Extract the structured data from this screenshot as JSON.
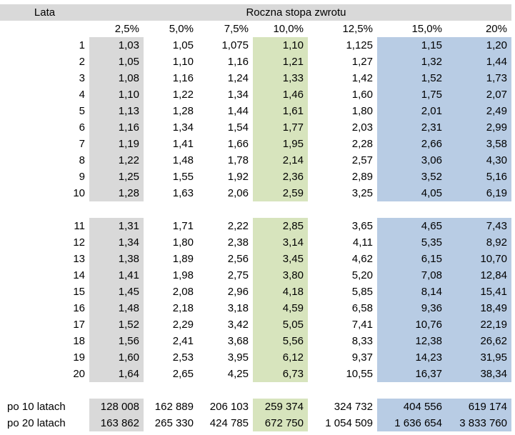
{
  "header": {
    "years_label": "Lata",
    "rate_title": "Roczna stopa zwrotu"
  },
  "rates": [
    "2,5%",
    "5,0%",
    "7,5%",
    "10,0%",
    "12,5%",
    "15,0%",
    "20%"
  ],
  "block1": [
    {
      "year": "1",
      "values": [
        "1,03",
        "1,05",
        "1,075",
        "1,10",
        "1,125",
        "1,15",
        "1,20"
      ]
    },
    {
      "year": "2",
      "values": [
        "1,05",
        "1,10",
        "1,16",
        "1,21",
        "1,27",
        "1,32",
        "1,44"
      ]
    },
    {
      "year": "3",
      "values": [
        "1,08",
        "1,16",
        "1,24",
        "1,33",
        "1,42",
        "1,52",
        "1,73"
      ]
    },
    {
      "year": "4",
      "values": [
        "1,10",
        "1,22",
        "1,34",
        "1,46",
        "1,60",
        "1,75",
        "2,07"
      ]
    },
    {
      "year": "5",
      "values": [
        "1,13",
        "1,28",
        "1,44",
        "1,61",
        "1,80",
        "2,01",
        "2,49"
      ]
    },
    {
      "year": "6",
      "values": [
        "1,16",
        "1,34",
        "1,54",
        "1,77",
        "2,03",
        "2,31",
        "2,99"
      ]
    },
    {
      "year": "7",
      "values": [
        "1,19",
        "1,41",
        "1,66",
        "1,95",
        "2,28",
        "2,66",
        "3,58"
      ]
    },
    {
      "year": "8",
      "values": [
        "1,22",
        "1,48",
        "1,78",
        "2,14",
        "2,57",
        "3,06",
        "4,30"
      ]
    },
    {
      "year": "9",
      "values": [
        "1,25",
        "1,55",
        "1,92",
        "2,36",
        "2,89",
        "3,52",
        "5,16"
      ]
    },
    {
      "year": "10",
      "values": [
        "1,28",
        "1,63",
        "2,06",
        "2,59",
        "3,25",
        "4,05",
        "6,19"
      ]
    }
  ],
  "block2": [
    {
      "year": "11",
      "values": [
        "1,31",
        "1,71",
        "2,22",
        "2,85",
        "3,65",
        "4,65",
        "7,43"
      ]
    },
    {
      "year": "12",
      "values": [
        "1,34",
        "1,80",
        "2,38",
        "3,14",
        "4,11",
        "5,35",
        "8,92"
      ]
    },
    {
      "year": "13",
      "values": [
        "1,38",
        "1,89",
        "2,56",
        "3,45",
        "4,62",
        "6,15",
        "10,70"
      ]
    },
    {
      "year": "14",
      "values": [
        "1,41",
        "1,98",
        "2,75",
        "3,80",
        "5,20",
        "7,08",
        "12,84"
      ]
    },
    {
      "year": "15",
      "values": [
        "1,45",
        "2,08",
        "2,96",
        "4,18",
        "5,85",
        "8,14",
        "15,41"
      ]
    },
    {
      "year": "16",
      "values": [
        "1,48",
        "2,18",
        "3,18",
        "4,59",
        "6,58",
        "9,36",
        "18,49"
      ]
    },
    {
      "year": "17",
      "values": [
        "1,52",
        "2,29",
        "3,42",
        "5,05",
        "7,41",
        "10,76",
        "22,19"
      ]
    },
    {
      "year": "18",
      "values": [
        "1,56",
        "2,41",
        "3,68",
        "5,56",
        "8,33",
        "12,38",
        "26,62"
      ]
    },
    {
      "year": "19",
      "values": [
        "1,60",
        "2,53",
        "3,95",
        "6,12",
        "9,37",
        "14,23",
        "31,95"
      ]
    },
    {
      "year": "20",
      "values": [
        "1,64",
        "2,65",
        "4,25",
        "6,73",
        "10,55",
        "16,37",
        "38,34"
      ]
    }
  ],
  "summary": [
    {
      "label": "po 10 latach",
      "values": [
        "128 008",
        "162 889",
        "206 103",
        "259 374",
        "324 732",
        "404 556",
        "619 174"
      ]
    },
    {
      "label": "po 20 latach",
      "values": [
        "163 862",
        "265 330",
        "424 785",
        "672 750",
        "1 054 509",
        "1 636 654",
        "3 833 760"
      ]
    }
  ],
  "colors": {
    "header_bg": "#d9d9d9",
    "gray_band": "#d9d9d9",
    "green_band": "#d7e4bd",
    "blue_band": "#b8cce4"
  }
}
